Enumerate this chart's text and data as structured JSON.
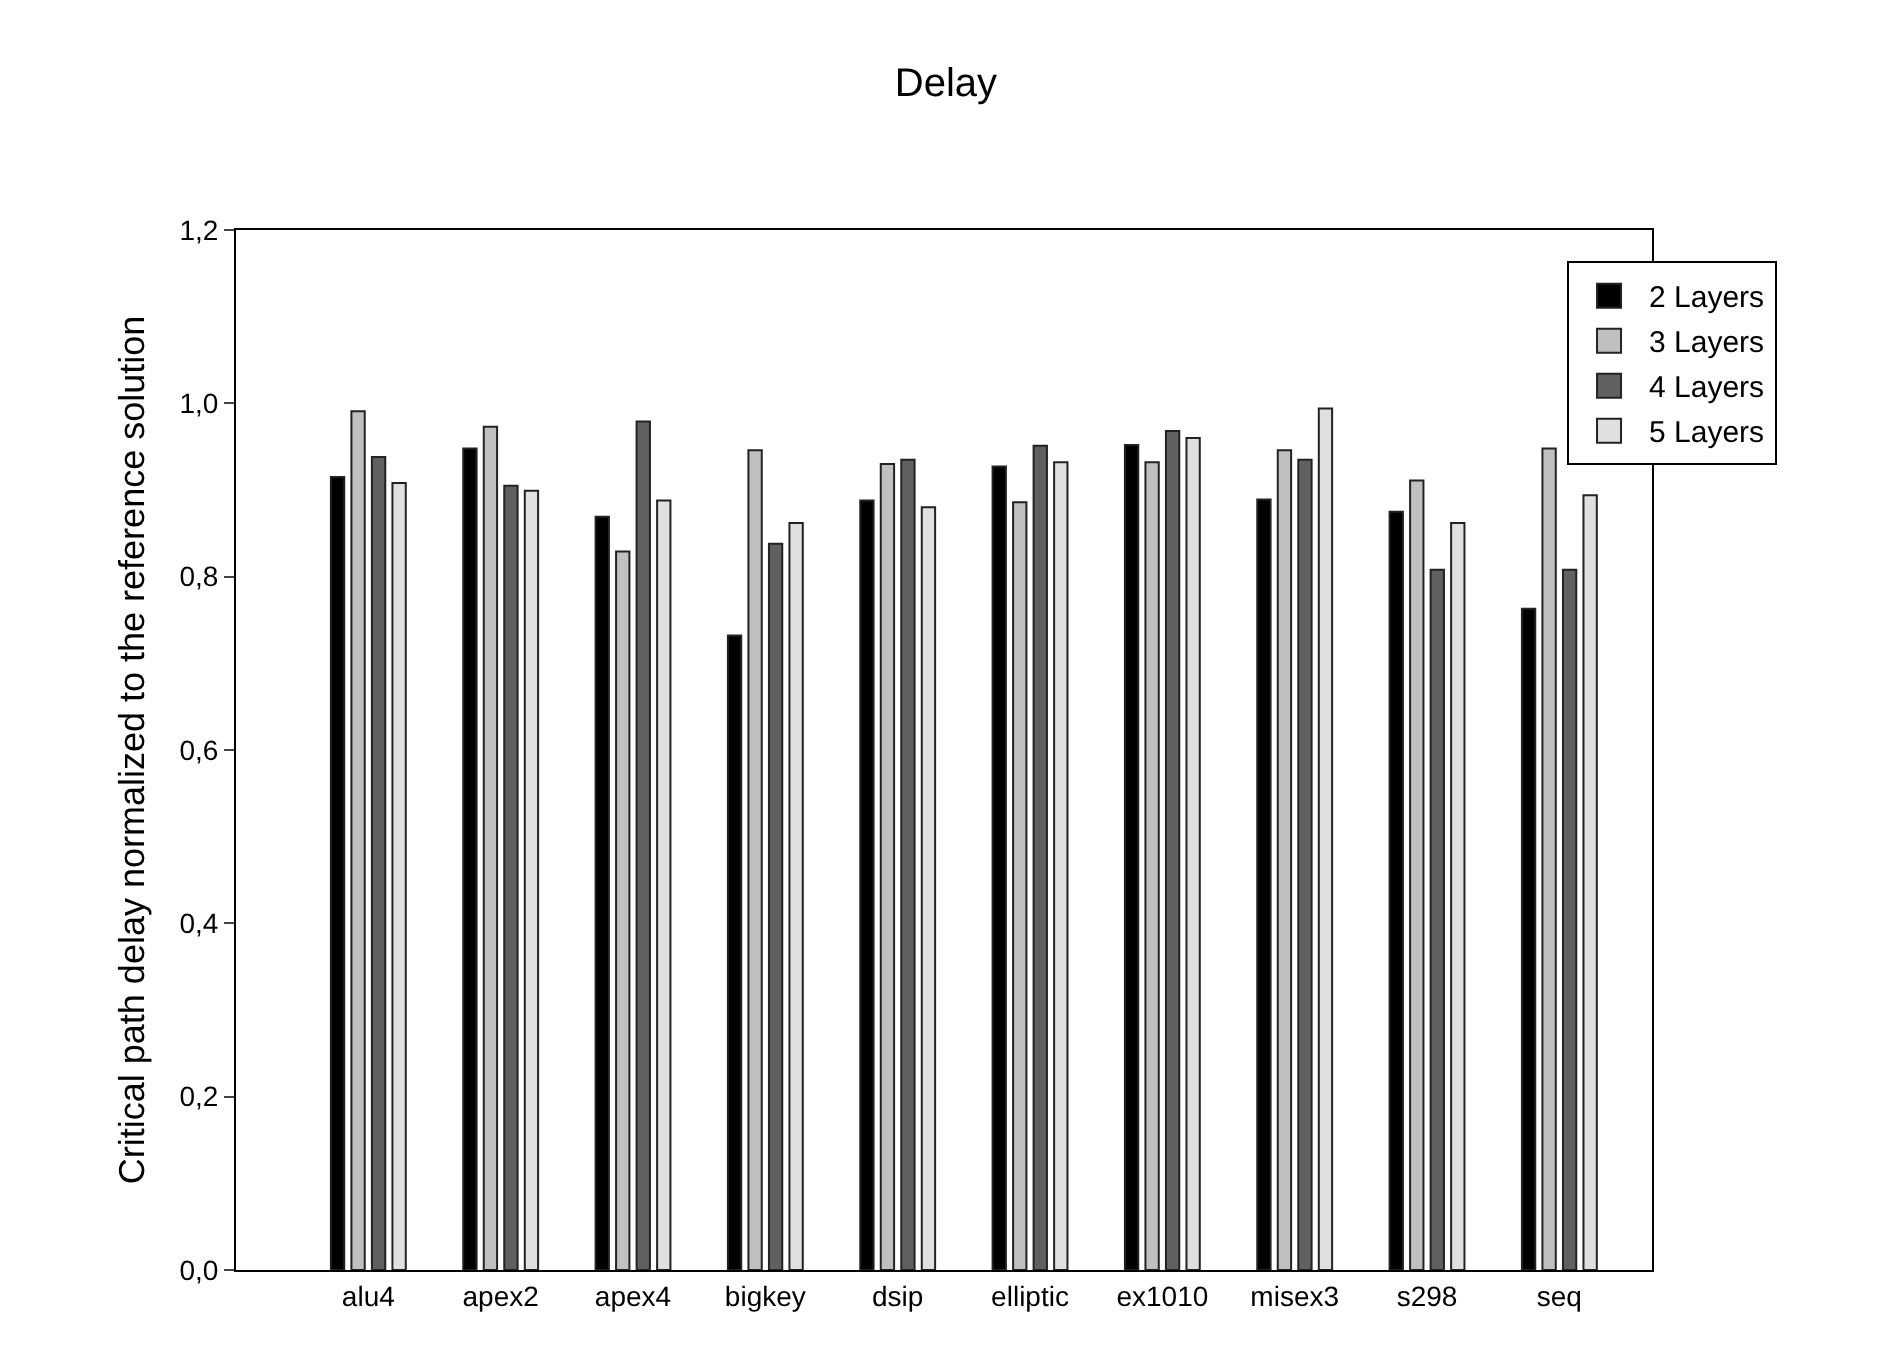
{
  "chart_data": {
    "type": "bar",
    "title": "Delay",
    "ylabel": "Critical path delay normalized to the reference solution",
    "categories": [
      "alu4",
      "apex2",
      "apex4",
      "bigkey",
      "dsip",
      "elliptic",
      "ex1010",
      "misex3",
      "s298",
      "seq"
    ],
    "series": [
      {
        "name": "2 Layers",
        "color": "#000000",
        "values": [
          0.915,
          0.948,
          0.869,
          0.732,
          0.888,
          0.927,
          0.952,
          0.889,
          0.875,
          0.763
        ]
      },
      {
        "name": "3 Layers",
        "color": "#c0c0c0",
        "values": [
          0.991,
          0.973,
          0.829,
          0.946,
          0.93,
          0.886,
          0.932,
          0.946,
          0.911,
          0.948
        ]
      },
      {
        "name": "4 Layers",
        "color": "#606060",
        "values": [
          0.938,
          0.905,
          0.979,
          0.838,
          0.935,
          0.951,
          0.968,
          0.935,
          0.808,
          0.808
        ]
      },
      {
        "name": "5 Layers",
        "color": "#e0e0e0",
        "values": [
          0.908,
          0.899,
          0.888,
          0.862,
          0.88,
          0.932,
          0.96,
          0.994,
          0.862,
          0.894
        ]
      }
    ],
    "ylim": [
      0,
      1.2
    ],
    "yticks": [
      {
        "value": 0,
        "label": "0,0"
      },
      {
        "value": 0.2,
        "label": "0,2"
      },
      {
        "value": 0.4,
        "label": "0,4"
      },
      {
        "value": 0.6,
        "label": "0,6"
      },
      {
        "value": 0.8,
        "label": "0,8"
      },
      {
        "value": 1.0,
        "label": "1,0"
      },
      {
        "value": 1.2,
        "label": "1,2"
      }
    ],
    "legend": "top right"
  }
}
